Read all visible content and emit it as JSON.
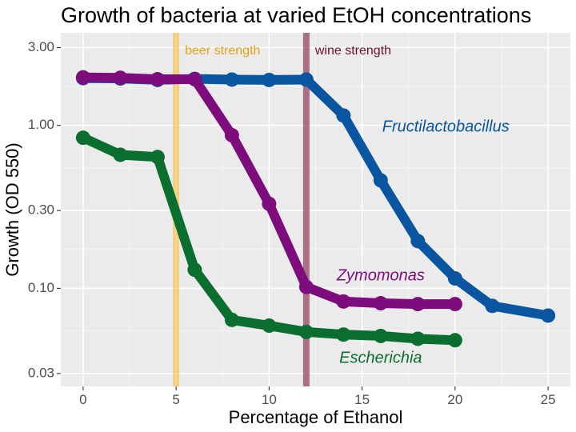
{
  "chart_data": {
    "type": "line",
    "title": "Growth of bacteria at varied EtOH concentrations",
    "xlabel": "Percentage of Ethanol",
    "ylabel": "Growth (OD 550)",
    "xlim": [
      -1.2,
      26.2
    ],
    "ylim": [
      0.025,
      3.7
    ],
    "y_scale": "log",
    "x_ticks": [
      0,
      5,
      10,
      15,
      20,
      25
    ],
    "x_tick_labels": [
      "0",
      "5",
      "10",
      "15",
      "20",
      "25"
    ],
    "y_ticks": [
      0.03,
      0.1,
      0.3,
      1.0,
      3.0
    ],
    "y_tick_labels": [
      "0.03",
      "0.10",
      "0.30",
      "1.00",
      "3.00"
    ],
    "grid": true,
    "background": "#ebebeb",
    "series": [
      {
        "name": "Fructilactobacillus",
        "color": "#0a55a0",
        "x": [
          0,
          2,
          4,
          6,
          8,
          10,
          12,
          14,
          16,
          18,
          20,
          22,
          25
        ],
        "y": [
          1.95,
          1.94,
          1.9,
          1.93,
          1.91,
          1.9,
          1.91,
          1.15,
          0.46,
          0.195,
          0.115,
          0.078,
          0.068
        ],
        "label_pos": [
          19.5,
          0.97
        ]
      },
      {
        "name": "Zymomonas",
        "color": "#7d0d7d",
        "x": [
          0,
          2,
          4,
          6,
          8,
          10,
          12,
          14,
          16,
          18,
          20
        ],
        "y": [
          1.97,
          1.96,
          1.92,
          1.92,
          0.87,
          0.33,
          0.102,
          0.083,
          0.081,
          0.08,
          0.08
        ],
        "label_pos": [
          16.0,
          0.119
        ]
      },
      {
        "name": "Escherichia",
        "color": "#0a6e2e",
        "x": [
          0,
          2,
          4,
          6,
          8,
          10,
          12,
          14,
          16,
          18,
          20
        ],
        "y": [
          0.84,
          0.66,
          0.64,
          0.13,
          0.064,
          0.059,
          0.054,
          0.052,
          0.051,
          0.049,
          0.048
        ],
        "label_pos": [
          16.0,
          0.037
        ]
      }
    ],
    "vlines": [
      {
        "x": 5,
        "label": "beer strength",
        "color": "#f5b730",
        "label_color": "#e5a218"
      },
      {
        "x": 12,
        "label": "wine strength",
        "color": "#8e3b5a",
        "label_color": "#6d0f2c"
      }
    ]
  }
}
